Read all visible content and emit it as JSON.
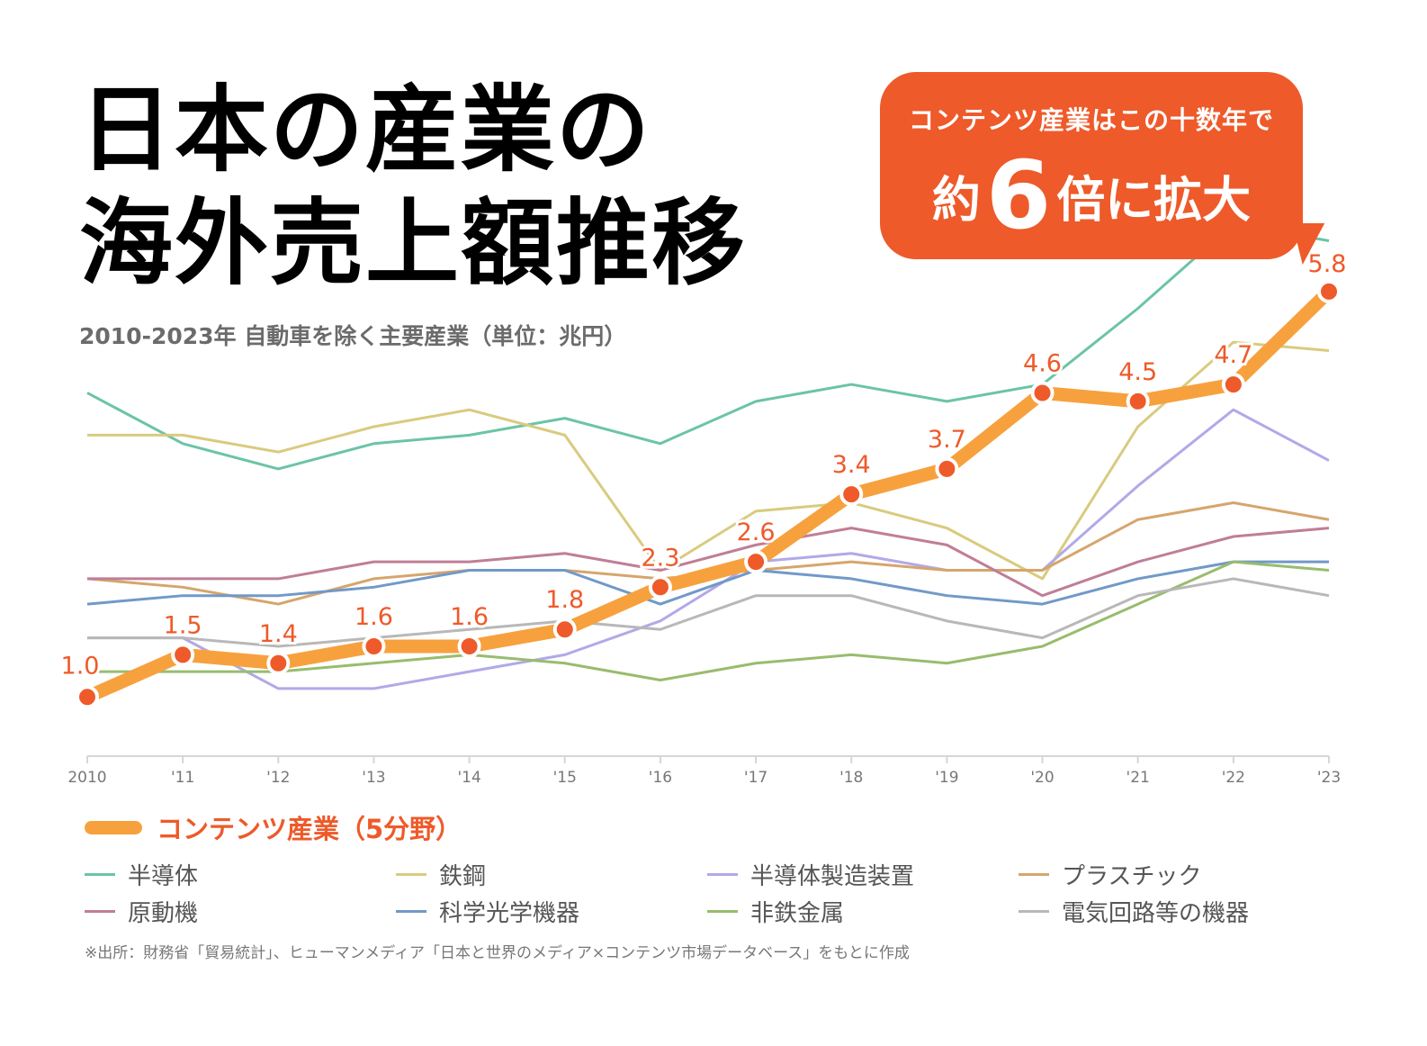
{
  "title": {
    "line1": "日本の産業の",
    "line2": "海外売上額推移"
  },
  "subtitle": "2010-2023年 自動車を除く主要産業（単位：兆円）",
  "callout": {
    "line1": "コンテンツ産業はこの十数年で",
    "pre": "約",
    "big": "6",
    "post": "倍に拡大",
    "color": "#ee5a2a"
  },
  "source": "※出所：財務省「貿易統計」、ヒューマンメディア「日本と世界のメディア×コンテンツ市場データベース」をもとに作成",
  "chart_data": {
    "type": "line",
    "x": [
      "2010",
      "'11",
      "'12",
      "'13",
      "'14",
      "'15",
      "'16",
      "'17",
      "'18",
      "'19",
      "'20",
      "'21",
      "'22",
      "'23"
    ],
    "ylim": [
      0.3,
      6.8
    ],
    "grid": false,
    "highlight": {
      "name": "コンテンツ産業（5分野）",
      "color": "#f7a13e",
      "marker_color": "#ee5a2a",
      "values": [
        1.0,
        1.5,
        1.4,
        1.6,
        1.6,
        1.8,
        2.3,
        2.6,
        3.4,
        3.7,
        4.6,
        4.5,
        4.7,
        5.8
      ],
      "labels": [
        "1.0",
        "1.5",
        "1.4",
        "1.6",
        "1.6",
        "1.8",
        "2.3",
        "2.6",
        "3.4",
        "3.7",
        "4.6",
        "4.5",
        "4.7",
        "5.8"
      ]
    },
    "series": [
      {
        "name": "半導体",
        "color": "#6bc4a6",
        "values": [
          4.6,
          4.0,
          3.7,
          4.0,
          4.1,
          4.3,
          4.0,
          4.5,
          4.7,
          4.5,
          4.7,
          5.6,
          6.6,
          6.4
        ]
      },
      {
        "name": "鉄鋼",
        "color": "#d9cb7e",
        "values": [
          4.1,
          4.1,
          3.9,
          4.2,
          4.4,
          4.1,
          2.5,
          3.2,
          3.3,
          3.0,
          2.4,
          4.2,
          5.2,
          5.1
        ]
      },
      {
        "name": "半導体製造装置",
        "color": "#b1a9e8",
        "values": [
          1.7,
          1.7,
          1.1,
          1.1,
          1.3,
          1.5,
          1.9,
          2.6,
          2.7,
          2.5,
          2.5,
          3.5,
          4.4,
          3.8
        ]
      },
      {
        "name": "プラスチック",
        "color": "#d6a56c",
        "values": [
          2.4,
          2.3,
          2.1,
          2.4,
          2.5,
          2.5,
          2.4,
          2.5,
          2.6,
          2.5,
          2.5,
          3.1,
          3.3,
          3.1
        ]
      },
      {
        "name": "原動機",
        "color": "#c07e96",
        "values": [
          2.4,
          2.4,
          2.4,
          2.6,
          2.6,
          2.7,
          2.5,
          2.8,
          3.0,
          2.8,
          2.2,
          2.6,
          2.9,
          3.0
        ]
      },
      {
        "name": "科学光学機器",
        "color": "#7199c8",
        "values": [
          2.1,
          2.2,
          2.2,
          2.3,
          2.5,
          2.5,
          2.1,
          2.5,
          2.4,
          2.2,
          2.1,
          2.4,
          2.6,
          2.6
        ]
      },
      {
        "name": "非鉄金属",
        "color": "#98bc6e",
        "values": [
          1.3,
          1.3,
          1.3,
          1.4,
          1.5,
          1.4,
          1.2,
          1.4,
          1.5,
          1.4,
          1.6,
          2.1,
          2.6,
          2.5
        ]
      },
      {
        "name": "電気回路等の機器",
        "color": "#b8b8b8",
        "values": [
          1.7,
          1.7,
          1.6,
          1.7,
          1.8,
          1.9,
          1.8,
          2.2,
          2.2,
          1.9,
          1.7,
          2.2,
          2.4,
          2.2
        ]
      }
    ]
  }
}
